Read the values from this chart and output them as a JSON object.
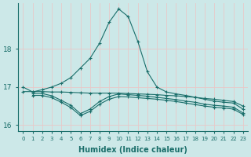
{
  "xlabel": "Humidex (Indice chaleur)",
  "bg_color": "#cce8e8",
  "grid_color": "#e8c8c8",
  "line_color": "#1a6e6a",
  "xlim": [
    -0.5,
    23.5
  ],
  "ylim": [
    15.85,
    19.2
  ],
  "yticks": [
    16,
    17,
    18
  ],
  "xticks": [
    0,
    1,
    2,
    3,
    4,
    5,
    6,
    7,
    8,
    9,
    10,
    11,
    12,
    13,
    14,
    15,
    16,
    17,
    18,
    19,
    20,
    21,
    22,
    23
  ],
  "series": [
    {
      "x": [
        0,
        1,
        2,
        3,
        4,
        5,
        6,
        7,
        8,
        9,
        10,
        11,
        12,
        13,
        14,
        15,
        16,
        17,
        18,
        19,
        20,
        21,
        22,
        23
      ],
      "y": [
        17.0,
        16.87,
        16.93,
        17.0,
        17.1,
        17.25,
        17.5,
        17.75,
        18.15,
        18.7,
        19.05,
        18.85,
        18.2,
        17.4,
        17.0,
        16.87,
        16.82,
        16.78,
        16.73,
        16.68,
        16.63,
        16.6,
        16.58,
        16.42
      ]
    },
    {
      "x": [
        0,
        1,
        2,
        3,
        4,
        5,
        6,
        7,
        8,
        9,
        10,
        11,
        12,
        13,
        14,
        15,
        16,
        17,
        18,
        19,
        20,
        21,
        22,
        23
      ],
      "y": [
        16.88,
        16.88,
        16.88,
        16.87,
        16.87,
        16.86,
        16.85,
        16.84,
        16.84,
        16.84,
        16.84,
        16.83,
        16.82,
        16.81,
        16.8,
        16.78,
        16.77,
        16.75,
        16.73,
        16.7,
        16.68,
        16.65,
        16.62,
        16.5
      ]
    },
    {
      "x": [
        1,
        2,
        3,
        4,
        5,
        6,
        7,
        8,
        9,
        10,
        11,
        12,
        13,
        14,
        15,
        16,
        17,
        18,
        19,
        20,
        21,
        22,
        23
      ],
      "y": [
        16.83,
        16.83,
        16.77,
        16.65,
        16.52,
        16.3,
        16.42,
        16.62,
        16.75,
        16.82,
        16.8,
        16.78,
        16.76,
        16.73,
        16.7,
        16.67,
        16.63,
        16.6,
        16.55,
        16.52,
        16.5,
        16.47,
        16.32
      ]
    },
    {
      "x": [
        1,
        2,
        3,
        4,
        5,
        6,
        7,
        8,
        9,
        10,
        11,
        12,
        13,
        14,
        15,
        16,
        17,
        18,
        19,
        20,
        21,
        22,
        23
      ],
      "y": [
        16.78,
        16.78,
        16.72,
        16.6,
        16.46,
        16.25,
        16.36,
        16.55,
        16.68,
        16.75,
        16.74,
        16.72,
        16.7,
        16.68,
        16.65,
        16.62,
        16.58,
        16.54,
        16.5,
        16.47,
        16.45,
        16.42,
        16.28
      ]
    }
  ]
}
